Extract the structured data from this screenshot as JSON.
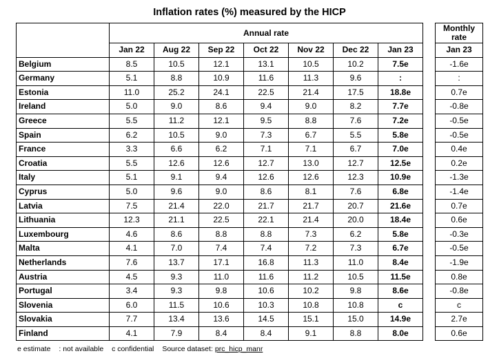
{
  "title": "Inflation rates (%) measured by the HICP",
  "annual_header": "Annual rate",
  "monthly_header": "Monthly rate",
  "columns": [
    "Jan 22",
    "Aug 22",
    "Sep 22",
    "Oct 22",
    "Nov 22",
    "Dec 22",
    "Jan 23"
  ],
  "monthly_column": "Jan 23",
  "rows": [
    {
      "country": "Belgium",
      "values": [
        "8.5",
        "10.5",
        "12.1",
        "13.1",
        "10.5",
        "10.2",
        "7.5e"
      ],
      "monthly": "-1.6e"
    },
    {
      "country": "Germany",
      "values": [
        "5.1",
        "8.8",
        "10.9",
        "11.6",
        "11.3",
        "9.6",
        ":"
      ],
      "monthly": ":"
    },
    {
      "country": "Estonia",
      "values": [
        "11.0",
        "25.2",
        "24.1",
        "22.5",
        "21.4",
        "17.5",
        "18.8e"
      ],
      "monthly": "0.7e"
    },
    {
      "country": "Ireland",
      "values": [
        "5.0",
        "9.0",
        "8.6",
        "9.4",
        "9.0",
        "8.2",
        "7.7e"
      ],
      "monthly": "-0.8e"
    },
    {
      "country": "Greece",
      "values": [
        "5.5",
        "11.2",
        "12.1",
        "9.5",
        "8.8",
        "7.6",
        "7.2e"
      ],
      "monthly": "-0.5e"
    },
    {
      "country": "Spain",
      "values": [
        "6.2",
        "10.5",
        "9.0",
        "7.3",
        "6.7",
        "5.5",
        "5.8e"
      ],
      "monthly": "-0.5e"
    },
    {
      "country": "France",
      "values": [
        "3.3",
        "6.6",
        "6.2",
        "7.1",
        "7.1",
        "6.7",
        "7.0e"
      ],
      "monthly": "0.4e"
    },
    {
      "country": "Croatia",
      "values": [
        "5.5",
        "12.6",
        "12.6",
        "12.7",
        "13.0",
        "12.7",
        "12.5e"
      ],
      "monthly": "0.2e"
    },
    {
      "country": "Italy",
      "values": [
        "5.1",
        "9.1",
        "9.4",
        "12.6",
        "12.6",
        "12.3",
        "10.9e"
      ],
      "monthly": "-1.3e"
    },
    {
      "country": "Cyprus",
      "values": [
        "5.0",
        "9.6",
        "9.0",
        "8.6",
        "8.1",
        "7.6",
        "6.8e"
      ],
      "monthly": "-1.4e"
    },
    {
      "country": "Latvia",
      "values": [
        "7.5",
        "21.4",
        "22.0",
        "21.7",
        "21.7",
        "20.7",
        "21.6e"
      ],
      "monthly": "0.7e"
    },
    {
      "country": "Lithuania",
      "values": [
        "12.3",
        "21.1",
        "22.5",
        "22.1",
        "21.4",
        "20.0",
        "18.4e"
      ],
      "monthly": "0.6e"
    },
    {
      "country": "Luxembourg",
      "values": [
        "4.6",
        "8.6",
        "8.8",
        "8.8",
        "7.3",
        "6.2",
        "5.8e"
      ],
      "monthly": "-0.3e"
    },
    {
      "country": "Malta",
      "values": [
        "4.1",
        "7.0",
        "7.4",
        "7.4",
        "7.2",
        "7.3",
        "6.7e"
      ],
      "monthly": "-0.5e"
    },
    {
      "country": "Netherlands",
      "values": [
        "7.6",
        "13.7",
        "17.1",
        "16.8",
        "11.3",
        "11.0",
        "8.4e"
      ],
      "monthly": "-1.9e"
    },
    {
      "country": "Austria",
      "values": [
        "4.5",
        "9.3",
        "11.0",
        "11.6",
        "11.2",
        "10.5",
        "11.5e"
      ],
      "monthly": "0.8e"
    },
    {
      "country": "Portugal",
      "values": [
        "3.4",
        "9.3",
        "9.8",
        "10.6",
        "10.2",
        "9.8",
        "8.6e"
      ],
      "monthly": "-0.8e"
    },
    {
      "country": "Slovenia",
      "values": [
        "6.0",
        "11.5",
        "10.6",
        "10.3",
        "10.8",
        "10.8",
        "c"
      ],
      "monthly": "c"
    },
    {
      "country": "Slovakia",
      "values": [
        "7.7",
        "13.4",
        "13.6",
        "14.5",
        "15.1",
        "15.0",
        "14.9e"
      ],
      "monthly": "2.7e"
    },
    {
      "country": "Finland",
      "values": [
        "4.1",
        "7.9",
        "8.4",
        "8.4",
        "9.1",
        "8.8",
        "8.0e"
      ],
      "monthly": "0.6e"
    }
  ],
  "footer": {
    "estimate": "e estimate",
    "not_available": ": not available",
    "confidential": "c confidential",
    "source_label": "Source dataset:",
    "source_link": "prc_hicp_manr"
  }
}
